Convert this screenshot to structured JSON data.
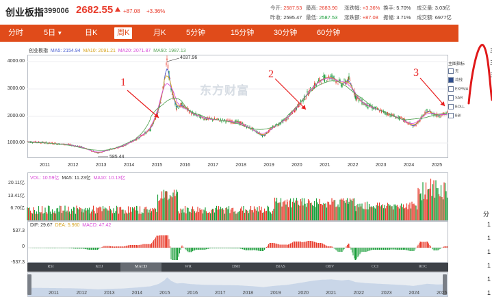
{
  "header": {
    "title": "创业板指",
    "code": "399006",
    "price": "2682.55",
    "change": "+87.08",
    "change_pct": "+3.36%",
    "stats": [
      {
        "label": "今开:",
        "value": "2587.53",
        "color": "red"
      },
      {
        "label": "最高:",
        "value": "2683.90",
        "color": "red"
      },
      {
        "label": "涨跌幅:",
        "value": "+3.36%",
        "color": "red"
      },
      {
        "label": "换手:",
        "value": "5.70%",
        "color": "blk"
      },
      {
        "label": "成交量:",
        "value": "3.03亿",
        "color": "blk"
      },
      {
        "label": "昨收:",
        "value": "2595.47",
        "color": "blk"
      },
      {
        "label": "最低:",
        "value": "2587.53",
        "color": "grn"
      },
      {
        "label": "涨跌额:",
        "value": "+87.08",
        "color": "red"
      },
      {
        "label": "振幅:",
        "value": "3.71%",
        "color": "blk"
      },
      {
        "label": "成交额:",
        "value": "6977亿",
        "color": "blk"
      }
    ]
  },
  "tabs": [
    {
      "label": "分时"
    },
    {
      "label": "5日"
    },
    {
      "label": "日K"
    },
    {
      "label": "周K",
      "active": true
    },
    {
      "label": "月K"
    },
    {
      "label": "5分钟"
    },
    {
      "label": "15分钟"
    },
    {
      "label": "30分钟"
    },
    {
      "label": "60分钟"
    }
  ],
  "main_legend": {
    "name": "创业板指",
    "ma5": "MA5: 2154.94",
    "ma10": "MA10: 2091.21",
    "ma20": "MA20: 2071.87",
    "ma60": "MA60: 1987.13"
  },
  "vol_legend": {
    "vol": "VOL: 10.59亿",
    "ma5": "MA5: 11.23亿",
    "ma10": "MA10: 10.13亿"
  },
  "macd_legend": {
    "dif": "DIF: 29.67",
    "dea": "DEA: 5.960",
    "macd": "MACD: 47.42"
  },
  "watermark": "东方财富",
  "price_axis": [
    "4000.00",
    "3000.00",
    "2000.00",
    "1000.00"
  ],
  "vol_axis": [
    "20.11亿",
    "13.41亿",
    "6.70亿"
  ],
  "macd_axis": [
    "537.3",
    "0",
    "-537.3"
  ],
  "years": [
    "2011",
    "2012",
    "2013",
    "2014",
    "2015",
    "2016",
    "2017",
    "2018",
    "2019",
    "2020",
    "2021",
    "2022",
    "2023",
    "2024",
    "2025"
  ],
  "nav_years": [
    "2011",
    "2012",
    "2013",
    "2014",
    "2015",
    "2016",
    "2017",
    "2018",
    "2019",
    "2020",
    "2021",
    "2022",
    "2023",
    "2024",
    "2025"
  ],
  "annotations": {
    "high": "4037.96",
    "low": "585.44",
    "n1": "1",
    "n2": "2",
    "n3": "3"
  },
  "indicator_tabs": [
    "RSI",
    "KDJ",
    "MACD",
    "WR",
    "DMI",
    "BIAS",
    "OBV",
    "CCI",
    "ROC"
  ],
  "indicator_active": "MACD",
  "menu": {
    "title": "主图指标",
    "options": [
      {
        "label": "无",
        "selected": false
      },
      {
        "label": "均线",
        "selected": true
      },
      {
        "label": "EXPMA",
        "selected": false
      },
      {
        "label": "SAR",
        "selected": false
      },
      {
        "label": "BOLL",
        "selected": false
      },
      {
        "label": "BBI",
        "selected": false
      }
    ]
  },
  "side_text": [
    "主",
    "主",
    "主",
    "分",
    "1",
    "1",
    "1",
    "1",
    "1",
    "1"
  ],
  "colors": {
    "accent": "#e04b1a",
    "up": "#e83a2a",
    "down": "#1a9e3a",
    "ma5": "#4a5fd0",
    "ma10": "#d6a21c",
    "ma20": "#d84ad8",
    "ma60": "#5aa55a"
  }
}
